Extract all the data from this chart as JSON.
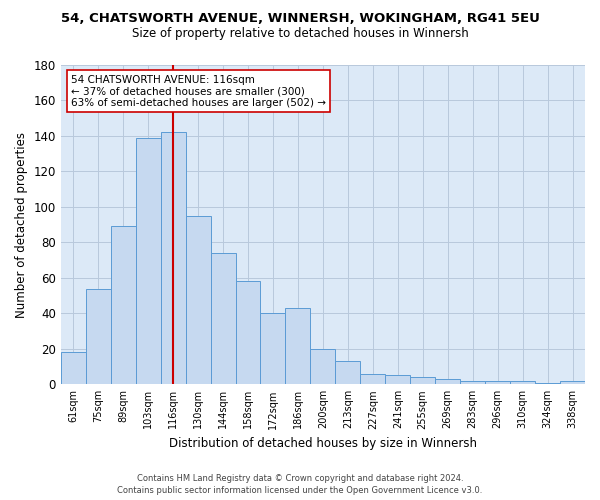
{
  "title_line1": "54, CHATSWORTH AVENUE, WINNERSH, WOKINGHAM, RG41 5EU",
  "title_line2": "Size of property relative to detached houses in Winnersh",
  "xlabel": "Distribution of detached houses by size in Winnersh",
  "ylabel": "Number of detached properties",
  "categories": [
    "61sqm",
    "75sqm",
    "89sqm",
    "103sqm",
    "116sqm",
    "130sqm",
    "144sqm",
    "158sqm",
    "172sqm",
    "186sqm",
    "200sqm",
    "213sqm",
    "227sqm",
    "241sqm",
    "255sqm",
    "269sqm",
    "283sqm",
    "296sqm",
    "310sqm",
    "324sqm",
    "338sqm"
  ],
  "values": [
    18,
    54,
    89,
    139,
    142,
    95,
    74,
    58,
    40,
    43,
    20,
    13,
    6,
    5,
    4,
    3,
    2,
    2,
    2,
    1,
    2
  ],
  "bar_color": "#c6d9f0",
  "bar_edge_color": "#5b9bd5",
  "vline_x": 4,
  "vline_color": "#cc0000",
  "ylim": [
    0,
    180
  ],
  "yticks": [
    0,
    20,
    40,
    60,
    80,
    100,
    120,
    140,
    160,
    180
  ],
  "annotation_line1": "54 CHATSWORTH AVENUE: 116sqm",
  "annotation_line2": "← 37% of detached houses are smaller (300)",
  "annotation_line3": "63% of semi-detached houses are larger (502) →",
  "annotation_box_color": "#ffffff",
  "annotation_box_edge": "#cc0000",
  "footer_line1": "Contains HM Land Registry data © Crown copyright and database right 2024.",
  "footer_line2": "Contains public sector information licensed under the Open Government Licence v3.0.",
  "background_color": "#ffffff",
  "plot_bg_color": "#dce9f7",
  "grid_color": "#b8c8dc"
}
